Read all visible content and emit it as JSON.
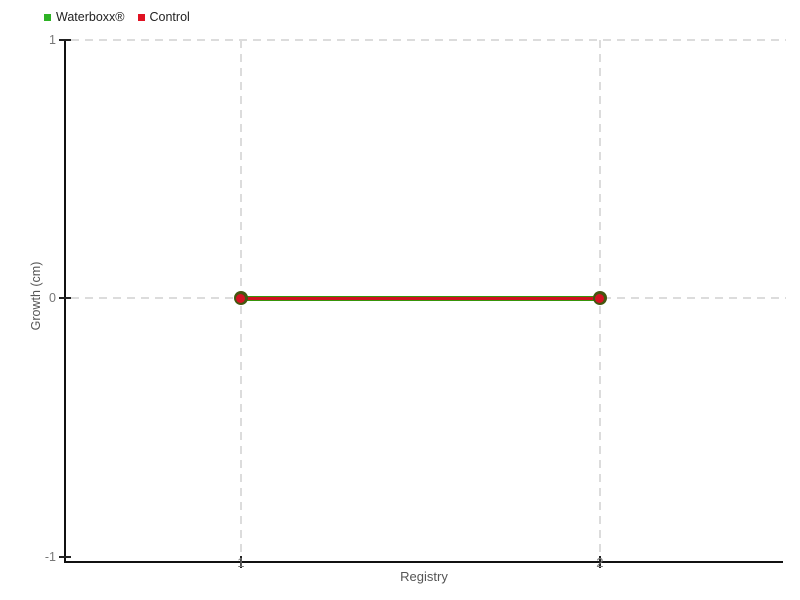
{
  "chart_data": {
    "type": "line",
    "title": "",
    "x": [
      1,
      2
    ],
    "series": [
      {
        "name": "Waterboxx®",
        "values": [
          0,
          0
        ],
        "color": "#2db224",
        "line_color": "#37940b",
        "marker": "circle",
        "marker_color": "#44560f"
      },
      {
        "name": "Control",
        "values": [
          0,
          0
        ],
        "color": "#e01222",
        "line_color": "#cf1120",
        "marker": "circle",
        "marker_color": "#d41223"
      }
    ],
    "xlabel": "Registry",
    "ylabel": "Growth (cm)",
    "xlim": [
      0.51,
      2.51
    ],
    "ylim": [
      -1.02,
      1
    ],
    "xticks": [
      "1",
      "2"
    ],
    "xtick_values": [
      1,
      2
    ],
    "yticks": [
      "1",
      "0",
      "-1"
    ],
    "ytick_values": [
      1,
      0,
      -1
    ],
    "grid": "dashed",
    "legend_position": "top-left",
    "colors": {
      "background": "#ffffff",
      "axis": "#111111",
      "grid": "#dcdcdc",
      "tick_label": "#777777",
      "axis_title": "#555555",
      "legend_text": "#222222"
    }
  }
}
